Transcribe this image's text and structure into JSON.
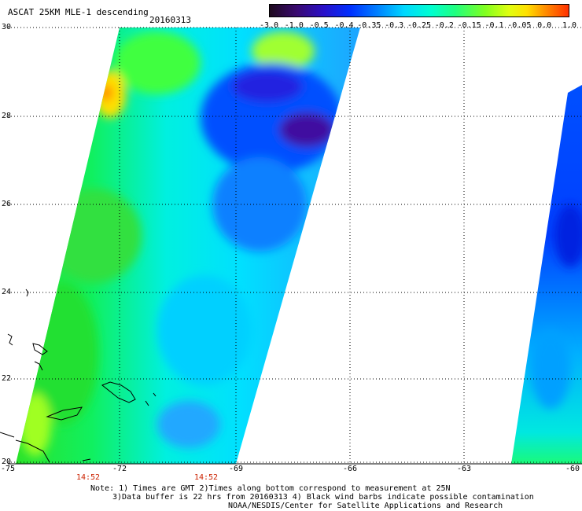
{
  "header": {
    "title": "ASCAT 25KM MLE-1 descending",
    "date": "20160313"
  },
  "colorbar": {
    "ticks": [
      "-3.0",
      "-1.0",
      "-0.5",
      "-0.4",
      "-0.35",
      "-0.3",
      "-0.25",
      "-0.2",
      "-0.15",
      "-0.1",
      "-0.05",
      "0.0",
      "1.0"
    ]
  },
  "axes": {
    "x_labels": [
      "-75",
      "-72",
      "-69",
      "-66",
      "-63",
      "-60"
    ],
    "y_labels": [
      "30",
      "28",
      "26",
      "24",
      "22",
      "20"
    ],
    "times": [
      "14:52",
      "14:52"
    ]
  },
  "swaths": [
    {
      "name": "west swath",
      "dominant_colors": [
        "#20e040",
        "#00f0e0",
        "#0060ff"
      ]
    },
    {
      "name": "east swath",
      "dominant_colors": [
        "#0040ff",
        "#00c0ff",
        "#20ff60"
      ]
    }
  ],
  "notes": {
    "line1": "Note: 1) Times are GMT 2)Times along bottom correspond to measurement at 25N",
    "line2": "3)Data buffer is 22 hrs from 20160313 4) Black wind barbs indicate possible contamination",
    "line3": "NOAA/NESDIS/Center for Satellite Applications and Research"
  }
}
